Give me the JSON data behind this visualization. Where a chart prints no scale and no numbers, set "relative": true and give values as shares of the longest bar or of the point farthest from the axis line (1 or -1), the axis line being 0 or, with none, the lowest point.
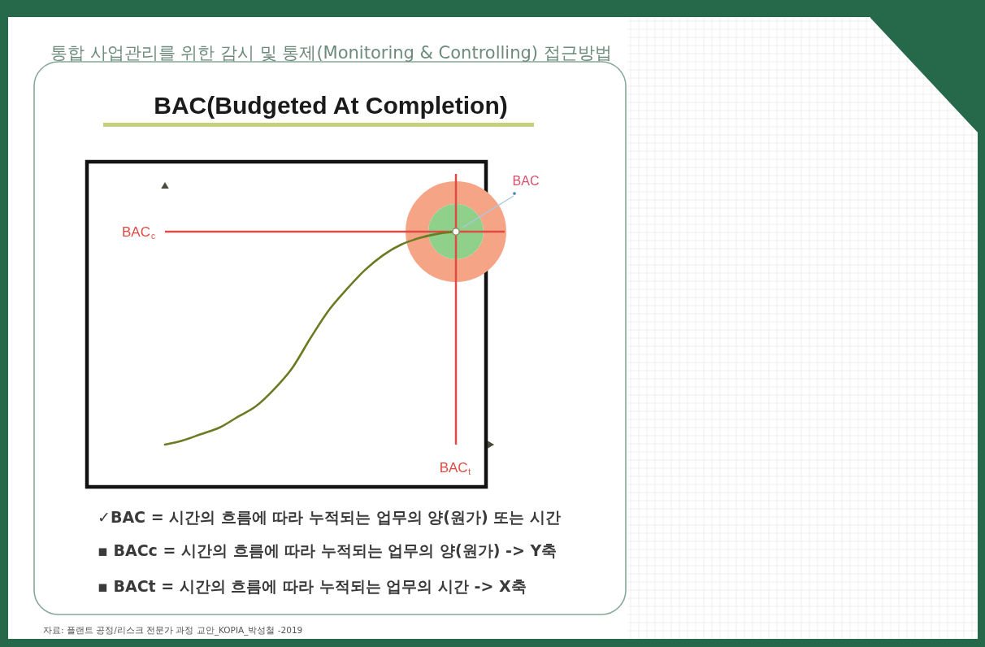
{
  "chart_data": {
    "type": "line",
    "title": "통합 사업관리를 위한 감시 및 통제(Monitoring & Controlling) 접근방법",
    "subtitle": "BAC(Budgeted At Completion)",
    "relative": true,
    "categories": [
      null,
      null,
      null,
      null,
      null,
      null,
      null,
      null,
      null,
      null,
      null,
      null,
      null,
      null,
      null,
      null,
      null
    ],
    "series": [
      {
        "color": "#6b7b22",
        "values": [
          0,
          0.02,
          0.05,
          0.08,
          0.13,
          0.18,
          0.26,
          0.36,
          0.5,
          0.63,
          0.73,
          0.82,
          0.89,
          0.94,
          0.97,
          0.99,
          1
        ]
      }
    ],
    "ref_lines": [
      {
        "axis": "y",
        "value": 1,
        "label": "BAC$_{c}$",
        "color": "#e04a44"
      }
    ],
    "annotations": [
      "BAC",
      "BAC$_{t}$",
      "✓BAC = 시간의 흐름에 따라 누적되는 업무의 양(원가) 또는 시간",
      "▪ BACc = 시간의 흐름에 따라 누적되는 업무의 양(원가) -> Y축",
      "▪ BACt = 시간의 흐름에 따라 누적되는 업무의 시간 -> X축",
      "자료: 플랜트 공정/리스크 전문가 과정 교안_KOPIA_박성철 -2019"
    ]
  }
}
